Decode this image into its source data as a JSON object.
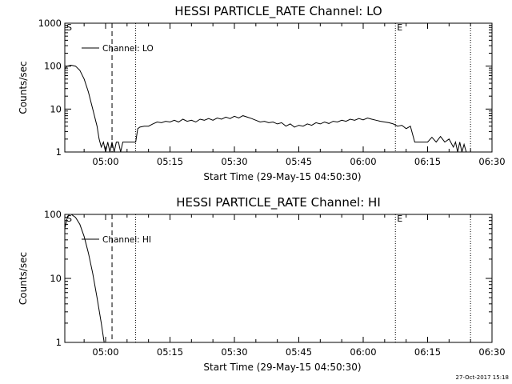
{
  "footer": {
    "timestamp": "27-Oct-2017 15:18"
  },
  "chart_data": [
    {
      "type": "line",
      "title": "HESSI PARTICLE_RATE Channel: LO",
      "xlabel": "Start Time (29-May-15 04:50:30)",
      "ylabel": "Counts/sec",
      "yscale": "log",
      "ylim": [
        1,
        1000
      ],
      "xlim": [
        "04:50:30",
        "06:30:00"
      ],
      "x_ticks": [
        "05:00",
        "05:15",
        "05:30",
        "05:45",
        "06:00",
        "06:15",
        "06:30"
      ],
      "y_ticks": [
        "1",
        "10",
        "100",
        "1000"
      ],
      "legend": {
        "placement": "top-left",
        "entries": [
          "Channel: LO"
        ]
      },
      "markers": [
        {
          "label": "S",
          "time": "04:50:30",
          "style": "none"
        },
        {
          "label": "",
          "time": "05:01:30",
          "style": "dashed"
        },
        {
          "label": "",
          "time": "05:07:00",
          "style": "dotted"
        },
        {
          "label": "E",
          "time": "06:07:30",
          "style": "dotted"
        },
        {
          "label": "",
          "time": "06:25:00",
          "style": "dotted"
        }
      ],
      "series": [
        {
          "points": [
            [
              "04:50:30",
              85
            ],
            [
              "04:51:00",
              100
            ],
            [
              "04:52:00",
              105
            ],
            [
              "04:53:00",
              100
            ],
            [
              "04:54:00",
              80
            ],
            [
              "04:55:00",
              50
            ],
            [
              "04:56:00",
              25
            ],
            [
              "04:57:00",
              10
            ],
            [
              "04:58:00",
              4
            ],
            [
              "04:58:30",
              2
            ],
            [
              "04:59:00",
              1.3
            ],
            [
              "04:59:30",
              1.7
            ],
            [
              "05:00:00",
              1.0
            ],
            [
              "05:00:30",
              1.7
            ],
            [
              "05:01:00",
              1.0
            ],
            [
              "05:01:30",
              1.7
            ],
            [
              "05:02:00",
              1.0
            ],
            [
              "05:02:30",
              1.7
            ],
            [
              "05:03:00",
              1.7
            ],
            [
              "05:03:30",
              1.0
            ],
            [
              "05:04:00",
              1.7
            ],
            [
              "05:05:00",
              1.7
            ],
            [
              "05:06:00",
              1.7
            ],
            [
              "05:07:00",
              1.7
            ],
            [
              "05:07:30",
              3.5
            ],
            [
              "05:08:00",
              3.8
            ],
            [
              "05:09:00",
              4.0
            ],
            [
              "05:10:00",
              4.0
            ],
            [
              "05:11:00",
              4.5
            ],
            [
              "05:12:00",
              5.0
            ],
            [
              "05:13:00",
              4.8
            ],
            [
              "05:14:00",
              5.2
            ],
            [
              "05:15:00",
              5.0
            ],
            [
              "05:16:00",
              5.5
            ],
            [
              "05:17:00",
              5.0
            ],
            [
              "05:18:00",
              5.8
            ],
            [
              "05:19:00",
              5.2
            ],
            [
              "05:20:00",
              5.5
            ],
            [
              "05:21:00",
              5.0
            ],
            [
              "05:22:00",
              5.8
            ],
            [
              "05:23:00",
              5.5
            ],
            [
              "05:24:00",
              6.0
            ],
            [
              "05:25:00",
              5.5
            ],
            [
              "05:26:00",
              6.2
            ],
            [
              "05:27:00",
              5.8
            ],
            [
              "05:28:00",
              6.5
            ],
            [
              "05:29:00",
              6.0
            ],
            [
              "05:30:00",
              6.8
            ],
            [
              "05:31:00",
              6.2
            ],
            [
              "05:32:00",
              7.0
            ],
            [
              "05:33:00",
              6.5
            ],
            [
              "05:34:00",
              6.0
            ],
            [
              "05:35:00",
              5.5
            ],
            [
              "05:36:00",
              5.0
            ],
            [
              "05:37:00",
              5.2
            ],
            [
              "05:38:00",
              4.8
            ],
            [
              "05:39:00",
              5.0
            ],
            [
              "05:40:00",
              4.5
            ],
            [
              "05:41:00",
              4.8
            ],
            [
              "05:42:00",
              4.0
            ],
            [
              "05:43:00",
              4.5
            ],
            [
              "05:44:00",
              3.8
            ],
            [
              "05:45:00",
              4.2
            ],
            [
              "05:46:00",
              4.0
            ],
            [
              "05:47:00",
              4.5
            ],
            [
              "05:48:00",
              4.2
            ],
            [
              "05:49:00",
              4.8
            ],
            [
              "05:50:00",
              4.5
            ],
            [
              "05:51:00",
              5.0
            ],
            [
              "05:52:00",
              4.6
            ],
            [
              "05:53:00",
              5.2
            ],
            [
              "05:54:00",
              5.0
            ],
            [
              "05:55:00",
              5.5
            ],
            [
              "05:56:00",
              5.2
            ],
            [
              "05:57:00",
              5.8
            ],
            [
              "05:58:00",
              5.5
            ],
            [
              "05:59:00",
              6.0
            ],
            [
              "06:00:00",
              5.6
            ],
            [
              "06:01:00",
              6.2
            ],
            [
              "06:02:00",
              5.8
            ],
            [
              "06:03:00",
              5.5
            ],
            [
              "06:04:00",
              5.2
            ],
            [
              "06:05:00",
              5.0
            ],
            [
              "06:06:00",
              4.8
            ],
            [
              "06:07:00",
              4.5
            ],
            [
              "06:08:00",
              4.0
            ],
            [
              "06:09:00",
              4.2
            ],
            [
              "06:10:00",
              3.5
            ],
            [
              "06:11:00",
              4.0
            ],
            [
              "06:12:00",
              1.7
            ],
            [
              "06:13:00",
              1.7
            ],
            [
              "06:14:00",
              1.7
            ],
            [
              "06:15:00",
              1.7
            ],
            [
              "06:16:00",
              2.2
            ],
            [
              "06:17:00",
              1.7
            ],
            [
              "06:18:00",
              2.3
            ],
            [
              "06:19:00",
              1.7
            ],
            [
              "06:20:00",
              2.0
            ],
            [
              "06:21:00",
              1.3
            ],
            [
              "06:21:30",
              1.7
            ],
            [
              "06:22:00",
              1.0
            ],
            [
              "06:22:30",
              1.7
            ],
            [
              "06:23:00",
              1.0
            ],
            [
              "06:23:30",
              1.5
            ],
            [
              "06:24:00",
              1.0
            ]
          ]
        }
      ]
    },
    {
      "type": "line",
      "title": "HESSI PARTICLE_RATE Channel: HI",
      "xlabel": "Start Time (29-May-15 04:50:30)",
      "ylabel": "Counts/sec",
      "yscale": "log",
      "ylim": [
        1,
        100
      ],
      "xlim": [
        "04:50:30",
        "06:30:00"
      ],
      "x_ticks": [
        "05:00",
        "05:15",
        "05:30",
        "05:45",
        "06:00",
        "06:15",
        "06:30"
      ],
      "y_ticks": [
        "1",
        "10",
        "100"
      ],
      "legend": {
        "placement": "top-left",
        "entries": [
          "Channel: HI"
        ]
      },
      "markers": [
        {
          "label": "S",
          "time": "04:50:30",
          "style": "none"
        },
        {
          "label": "",
          "time": "05:01:30",
          "style": "dashed"
        },
        {
          "label": "",
          "time": "05:07:00",
          "style": "dotted"
        },
        {
          "label": "E",
          "time": "06:07:30",
          "style": "dotted"
        },
        {
          "label": "",
          "time": "06:25:00",
          "style": "dotted"
        }
      ],
      "series": [
        {
          "points": [
            [
              "04:50:30",
              60
            ],
            [
              "04:51:00",
              85
            ],
            [
              "04:51:30",
              100
            ],
            [
              "04:52:00",
              100
            ],
            [
              "04:53:00",
              90
            ],
            [
              "04:54:00",
              70
            ],
            [
              "04:55:00",
              45
            ],
            [
              "04:56:00",
              25
            ],
            [
              "04:57:00",
              12
            ],
            [
              "04:58:00",
              5
            ],
            [
              "04:59:00",
              2
            ],
            [
              "04:59:40",
              1.0
            ]
          ]
        }
      ]
    }
  ]
}
